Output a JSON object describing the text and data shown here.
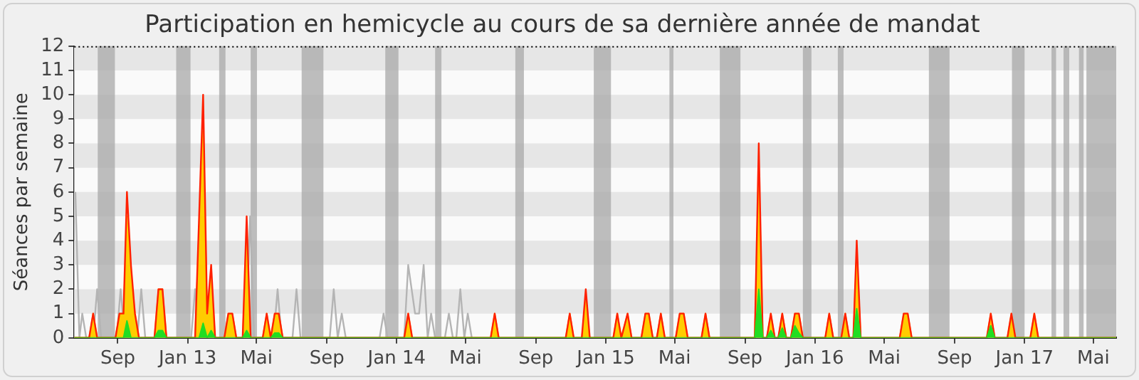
{
  "chart_data": {
    "type": "area",
    "title": "Participation en hemicycle au cours de sa dernière année de mandat",
    "ylabel": "Séances par semaine",
    "xlim": [
      "2012-06-17",
      "2017-06-10"
    ],
    "xticks": [
      {
        "value": "2012-09-01",
        "label": "Sep"
      },
      {
        "value": "2013-01-01",
        "label": "Jan 13"
      },
      {
        "value": "2013-05-01",
        "label": "Mai"
      },
      {
        "value": "2013-09-01",
        "label": "Sep"
      },
      {
        "value": "2014-01-01",
        "label": "Jan 14"
      },
      {
        "value": "2014-05-01",
        "label": "Mai"
      },
      {
        "value": "2014-09-01",
        "label": "Sep"
      },
      {
        "value": "2015-01-01",
        "label": "Jan 15"
      },
      {
        "value": "2015-05-01",
        "label": "Mai"
      },
      {
        "value": "2015-09-01",
        "label": "Sep"
      },
      {
        "value": "2016-01-01",
        "label": "Jan 16"
      },
      {
        "value": "2016-05-01",
        "label": "Mai"
      },
      {
        "value": "2016-09-01",
        "label": "Sep"
      },
      {
        "value": "2017-01-01",
        "label": "Jan 17"
      },
      {
        "value": "2017-05-01",
        "label": "Mai"
      }
    ],
    "ylim": [
      0,
      12
    ],
    "yticks": [
      0,
      1,
      2,
      3,
      4,
      5,
      6,
      7,
      8,
      9,
      10,
      11,
      12
    ],
    "bands": [
      {
        "axis": "x",
        "from": "2012-07-28",
        "to": "2012-08-27",
        "color": "#a8a8a8"
      },
      {
        "axis": "x",
        "from": "2012-12-12",
        "to": "2013-01-06",
        "color": "#a8a8a8"
      },
      {
        "axis": "x",
        "from": "2013-02-25",
        "to": "2013-03-08",
        "color": "#a8a8a8"
      },
      {
        "axis": "x",
        "from": "2013-04-21",
        "to": "2013-05-02",
        "color": "#a8a8a8"
      },
      {
        "axis": "x",
        "from": "2013-07-19",
        "to": "2013-08-26",
        "color": "#a8a8a8"
      },
      {
        "axis": "x",
        "from": "2013-12-12",
        "to": "2014-01-04",
        "color": "#a8a8a8"
      },
      {
        "axis": "x",
        "from": "2014-03-09",
        "to": "2014-03-20",
        "color": "#a8a8a8"
      },
      {
        "axis": "x",
        "from": "2014-07-27",
        "to": "2014-08-11",
        "color": "#a8a8a8"
      },
      {
        "axis": "x",
        "from": "2014-12-11",
        "to": "2015-01-10",
        "color": "#a8a8a8"
      },
      {
        "axis": "x",
        "from": "2015-04-22",
        "to": "2015-04-29",
        "color": "#a8a8a8"
      },
      {
        "axis": "x",
        "from": "2015-07-19",
        "to": "2015-08-24",
        "color": "#a8a8a8"
      },
      {
        "axis": "x",
        "from": "2015-12-11",
        "to": "2015-12-26",
        "color": "#a8a8a8"
      },
      {
        "axis": "x",
        "from": "2016-02-10",
        "to": "2016-02-20",
        "color": "#a8a8a8"
      },
      {
        "axis": "x",
        "from": "2016-07-18",
        "to": "2016-08-23",
        "color": "#a8a8a8"
      },
      {
        "axis": "x",
        "from": "2016-12-10",
        "to": "2017-01-01",
        "color": "#a8a8a8"
      },
      {
        "axis": "x",
        "from": "2017-02-17",
        "to": "2017-02-25",
        "color": "#a8a8a8"
      },
      {
        "axis": "x",
        "from": "2017-03-10",
        "to": "2017-03-20",
        "color": "#a8a8a8"
      },
      {
        "axis": "x",
        "from": "2017-04-06",
        "to": "2017-04-14",
        "color": "#a8a8a8"
      },
      {
        "axis": "x",
        "from": "2017-04-19",
        "to": "2017-06-10",
        "color": "#a8a8a8"
      }
    ],
    "series": [
      {
        "type": "line",
        "color": "#b4b4b4",
        "x": [
          "2012-06-19",
          "2012-06-26",
          "2012-07-01",
          "2012-07-08",
          "2012-07-20",
          "2012-07-27",
          "2012-08-03",
          "2012-08-30",
          "2012-09-06",
          "2012-09-13",
          "2012-10-05",
          "2012-10-12",
          "2012-10-19",
          "2013-01-07",
          "2013-01-14",
          "2013-01-21",
          "2013-04-13",
          "2013-04-20",
          "2013-04-27",
          "2013-05-31",
          "2013-06-07",
          "2013-06-14",
          "2013-07-03",
          "2013-07-10",
          "2013-07-17",
          "2013-09-06",
          "2013-09-13",
          "2013-09-20",
          "2013-09-27",
          "2013-10-04",
          "2013-12-02",
          "2013-12-09",
          "2013-12-16",
          "2014-01-14",
          "2014-01-21",
          "2014-02-02",
          "2014-02-09",
          "2014-02-17",
          "2014-02-24",
          "2014-03-02",
          "2014-03-09",
          "2014-03-26",
          "2014-04-02",
          "2014-04-09",
          "2014-04-15",
          "2014-04-22",
          "2014-04-29",
          "2014-05-05",
          "2014-05-12"
        ],
        "values": [
          6,
          0,
          1,
          0,
          0,
          2,
          0,
          0,
          2,
          0,
          0,
          2,
          0,
          0,
          2,
          0,
          0,
          5,
          0,
          0,
          2,
          0,
          0,
          2,
          0,
          0,
          2,
          0,
          1,
          0,
          0,
          1,
          0,
          0,
          3,
          1,
          1,
          3,
          0,
          1,
          0,
          0,
          1,
          0,
          0,
          2,
          0,
          1,
          0
        ]
      },
      {
        "color": "#ffcc00",
        "x": [
          "2012-06-17",
          "2012-07-13",
          "2012-07-20",
          "2012-07-27",
          "2012-08-28",
          "2012-09-04",
          "2012-09-11",
          "2012-09-17",
          "2012-09-24",
          "2012-10-01",
          "2012-10-08",
          "2012-11-04",
          "2012-11-11",
          "2012-11-18",
          "2012-11-25",
          "2013-01-14",
          "2013-01-21",
          "2013-01-28",
          "2013-02-04",
          "2013-02-11",
          "2013-02-18",
          "2013-03-06",
          "2013-03-13",
          "2013-03-20",
          "2013-03-27",
          "2013-04-07",
          "2013-04-14",
          "2013-04-21",
          "2013-05-12",
          "2013-05-19",
          "2013-05-26",
          "2013-06-02",
          "2013-06-09",
          "2013-06-16",
          "2014-01-14",
          "2014-01-21",
          "2014-01-28",
          "2014-06-14",
          "2014-06-21",
          "2014-06-28",
          "2014-10-23",
          "2014-10-30",
          "2014-11-06",
          "2014-11-20",
          "2014-11-27",
          "2014-12-04",
          "2015-01-14",
          "2015-01-21",
          "2015-01-28",
          "2015-02-08",
          "2015-02-15",
          "2015-03-04",
          "2015-03-11",
          "2015-03-17",
          "2015-03-24",
          "2015-03-31",
          "2015-04-07",
          "2015-04-14",
          "2015-05-03",
          "2015-05-10",
          "2015-05-17",
          "2015-05-24",
          "2015-06-17",
          "2015-06-24",
          "2015-07-01",
          "2015-09-18",
          "2015-09-25",
          "2015-10-02",
          "2015-10-09",
          "2015-10-16",
          "2015-10-23",
          "2015-10-29",
          "2015-11-05",
          "2015-11-12",
          "2015-11-20",
          "2015-11-27",
          "2015-12-04",
          "2015-12-11",
          "2016-01-19",
          "2016-01-26",
          "2016-02-02",
          "2016-02-16",
          "2016-02-23",
          "2016-03-01",
          "2016-03-08",
          "2016-03-14",
          "2016-03-21",
          "2016-05-28",
          "2016-06-04",
          "2016-06-11",
          "2016-06-18",
          "2016-10-27",
          "2016-11-03",
          "2016-11-10",
          "2016-12-02",
          "2016-12-09",
          "2016-12-16",
          "2017-01-11",
          "2017-01-18",
          "2017-01-25",
          "2017-06-10"
        ],
        "values": [
          0,
          0,
          1,
          0,
          0,
          1,
          1,
          5,
          2.5,
          1,
          0,
          0,
          2,
          2,
          0,
          0,
          4.5,
          8.5,
          1,
          2.5,
          0,
          0,
          1,
          1,
          0,
          0,
          4,
          0,
          0,
          1,
          0,
          1,
          1,
          0,
          0,
          1,
          0,
          0,
          1,
          0,
          0,
          1,
          0,
          0,
          1.5,
          0,
          0,
          1,
          0,
          1,
          0,
          0,
          1,
          1,
          0,
          0,
          1,
          0,
          0,
          1,
          1,
          0,
          0,
          1,
          0,
          0,
          7,
          0,
          0,
          1,
          0,
          0,
          1,
          0,
          0,
          1,
          1,
          0,
          0,
          1,
          0,
          0,
          1,
          0,
          0,
          3.5,
          0,
          0,
          1,
          1,
          0,
          0,
          1,
          0,
          0,
          1,
          0,
          0,
          1,
          0,
          0
        ]
      },
      {
        "type": "line",
        "color": "#ff2000",
        "x": [
          "2012-06-17",
          "2012-07-13",
          "2012-07-20",
          "2012-07-27",
          "2012-08-28",
          "2012-09-04",
          "2012-09-11",
          "2012-09-17",
          "2012-09-24",
          "2012-10-01",
          "2012-10-08",
          "2012-11-04",
          "2012-11-11",
          "2012-11-18",
          "2012-11-25",
          "2013-01-14",
          "2013-01-21",
          "2013-01-28",
          "2013-02-04",
          "2013-02-11",
          "2013-02-18",
          "2013-03-06",
          "2013-03-13",
          "2013-03-20",
          "2013-03-27",
          "2013-04-07",
          "2013-04-14",
          "2013-04-21",
          "2013-05-12",
          "2013-05-19",
          "2013-05-26",
          "2013-06-02",
          "2013-06-09",
          "2013-06-16",
          "2014-01-14",
          "2014-01-21",
          "2014-01-28",
          "2014-06-14",
          "2014-06-21",
          "2014-06-28",
          "2014-10-23",
          "2014-10-30",
          "2014-11-06",
          "2014-11-20",
          "2014-11-27",
          "2014-12-04",
          "2015-01-14",
          "2015-01-21",
          "2015-01-28",
          "2015-02-08",
          "2015-02-15",
          "2015-03-04",
          "2015-03-11",
          "2015-03-17",
          "2015-03-24",
          "2015-03-31",
          "2015-04-07",
          "2015-04-14",
          "2015-05-03",
          "2015-05-10",
          "2015-05-17",
          "2015-05-24",
          "2015-06-17",
          "2015-06-24",
          "2015-07-01",
          "2015-09-18",
          "2015-09-25",
          "2015-10-02",
          "2015-10-09",
          "2015-10-16",
          "2015-10-23",
          "2015-10-29",
          "2015-11-05",
          "2015-11-12",
          "2015-11-20",
          "2015-11-27",
          "2015-12-04",
          "2015-12-11",
          "2016-01-19",
          "2016-01-26",
          "2016-02-02",
          "2016-02-16",
          "2016-02-23",
          "2016-03-01",
          "2016-03-08",
          "2016-03-14",
          "2016-03-21",
          "2016-05-28",
          "2016-06-04",
          "2016-06-11",
          "2016-06-18",
          "2016-10-27",
          "2016-11-03",
          "2016-11-10",
          "2016-12-02",
          "2016-12-09",
          "2016-12-16",
          "2017-01-11",
          "2017-01-18",
          "2017-01-25",
          "2017-06-10"
        ],
        "values": [
          0,
          0,
          1,
          0,
          0,
          1,
          1,
          6,
          3,
          1,
          0,
          0,
          2,
          2,
          0,
          0,
          5,
          10,
          1,
          3,
          0,
          0,
          1,
          1,
          0,
          0,
          5,
          0,
          0,
          1,
          0,
          1,
          1,
          0,
          0,
          1,
          0,
          0,
          1,
          0,
          0,
          1,
          0,
          0,
          2,
          0,
          0,
          1,
          0,
          1,
          0,
          0,
          1,
          1,
          0,
          0,
          1,
          0,
          0,
          1,
          1,
          0,
          0,
          1,
          0,
          0,
          8,
          0,
          0,
          1,
          0,
          0,
          1,
          0,
          0,
          1,
          1,
          0,
          0,
          1,
          0,
          0,
          1,
          0,
          0,
          4,
          0,
          0,
          1,
          1,
          0,
          0,
          1,
          0,
          0,
          1,
          0,
          0,
          1,
          0,
          0
        ]
      },
      {
        "color": "#22dd22",
        "x": [
          "2012-06-17",
          "2012-09-11",
          "2012-09-17",
          "2012-09-24",
          "2012-11-04",
          "2012-11-11",
          "2012-11-18",
          "2012-11-25",
          "2013-01-21",
          "2013-01-28",
          "2013-02-04",
          "2013-02-11",
          "2013-02-18",
          "2013-04-07",
          "2013-04-14",
          "2013-04-21",
          "2013-05-26",
          "2013-06-02",
          "2013-06-09",
          "2013-06-16",
          "2015-09-18",
          "2015-09-25",
          "2015-10-02",
          "2015-10-09",
          "2015-10-16",
          "2015-10-23",
          "2015-10-29",
          "2015-11-05",
          "2015-11-12",
          "2015-11-20",
          "2015-11-27",
          "2015-12-04",
          "2015-12-11",
          "2016-03-08",
          "2016-03-14",
          "2016-03-21",
          "2016-10-27",
          "2016-11-03",
          "2016-11-10",
          "2017-06-10"
        ],
        "values": [
          0,
          0,
          0.7,
          0,
          0,
          0.3,
          0.3,
          0,
          0,
          0.6,
          0,
          0.3,
          0,
          0,
          0.3,
          0,
          0,
          0.2,
          0.2,
          0,
          0,
          2,
          0,
          0,
          0.3,
          0,
          0,
          0.4,
          0,
          0,
          0.5,
          0.2,
          0,
          0,
          1.2,
          0,
          0,
          0.5,
          0,
          0
        ]
      }
    ]
  }
}
